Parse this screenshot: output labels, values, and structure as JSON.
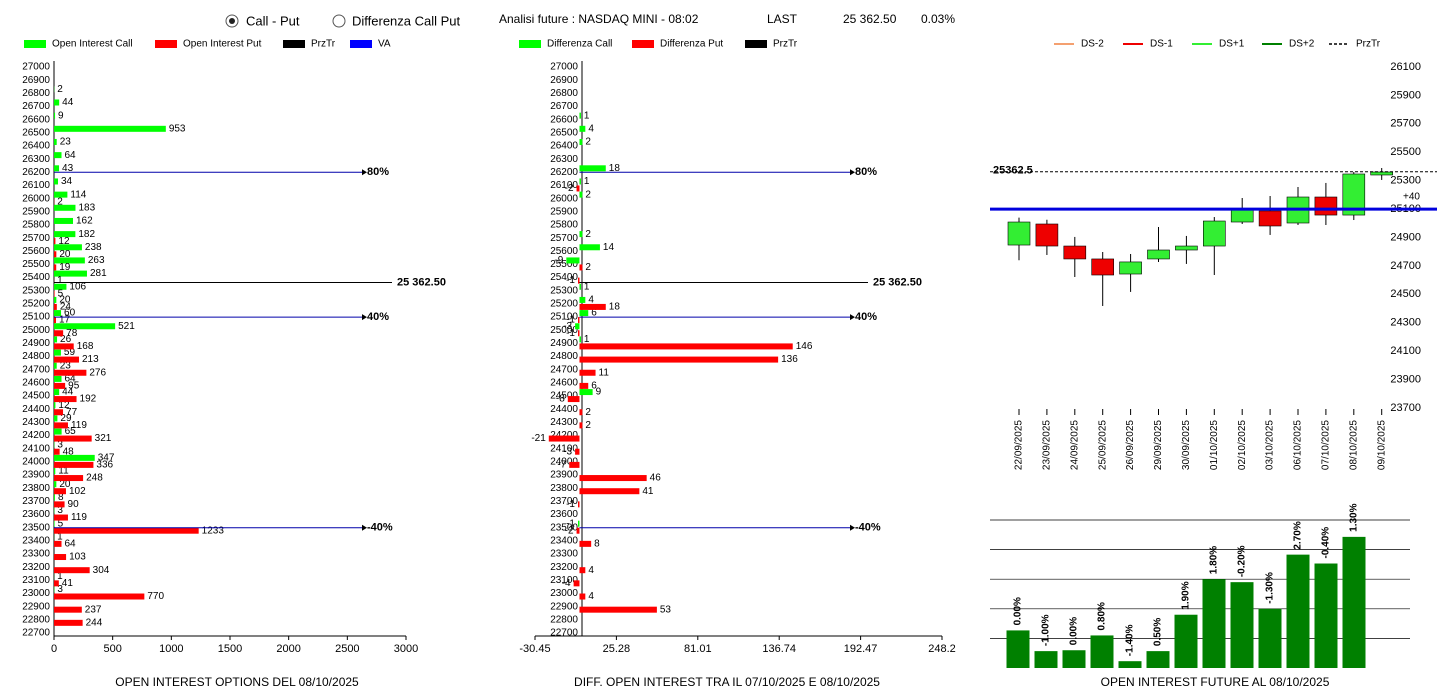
{
  "header": {
    "options": [
      "Call - Put",
      "Differenza Call Put"
    ],
    "title": "Analisi future : NASDAQ MINI - 08:02",
    "last_label": "LAST",
    "last_value": "25 362.50",
    "change": "0.03%"
  },
  "chart_data": [
    {
      "type": "bar",
      "orientation": "horizontal",
      "title": "OPEN INTEREST OPTIONS DEL 08/10/2025",
      "categories": [
        27000,
        26900,
        26800,
        26700,
        26600,
        26500,
        26400,
        26300,
        26200,
        26100,
        26000,
        25900,
        25800,
        25700,
        25600,
        25500,
        25400,
        25300,
        25200,
        25100,
        25000,
        24900,
        24800,
        24700,
        24600,
        24500,
        24400,
        24300,
        24200,
        24100,
        24000,
        23900,
        23800,
        23700,
        23600,
        23500,
        23400,
        23300,
        23200,
        23100,
        23000,
        22900,
        22800,
        22700
      ],
      "series": [
        {
          "name": "Open Interest Call",
          "color": "#00ff00",
          "values": [
            null,
            null,
            2,
            44,
            9,
            953,
            23,
            64,
            43,
            34,
            114,
            183,
            162,
            182,
            238,
            263,
            281,
            106,
            20,
            60,
            521,
            26,
            59,
            23,
            64,
            44,
            12,
            29,
            65,
            3,
            347,
            11,
            20,
            8,
            3,
            5,
            1,
            null,
            null,
            1,
            3,
            null,
            null,
            null
          ]
        },
        {
          "name": "Open Interest Put",
          "color": "#ff0000",
          "values": [
            null,
            null,
            null,
            null,
            null,
            null,
            null,
            null,
            null,
            null,
            2,
            null,
            null,
            12,
            20,
            19,
            1,
            5,
            24,
            17,
            78,
            168,
            213,
            276,
            95,
            192,
            77,
            119,
            321,
            48,
            336,
            248,
            102,
            90,
            119,
            1233,
            64,
            103,
            304,
            41,
            770,
            237,
            244,
            null
          ]
        }
      ],
      "legend_extra": [
        {
          "name": "PrzTr",
          "color": "#000000"
        },
        {
          "name": "VA",
          "color": "#0000ff"
        }
      ],
      "reference_lines": [
        {
          "value": 26200,
          "label": "80%",
          "color": "#0000aa"
        },
        {
          "value": 25362.5,
          "label": "25 362.50",
          "color": "#000000"
        },
        {
          "value": 25100,
          "label": "40%",
          "color": "#0000aa"
        },
        {
          "value": 23500,
          "label": "-40%",
          "color": "#0000aa"
        }
      ],
      "xlim": [
        0,
        3000
      ],
      "xticks": [
        0,
        500,
        1000,
        1500,
        2000,
        2500,
        3000
      ]
    },
    {
      "type": "bar",
      "orientation": "horizontal",
      "title": "DIFF. OPEN INTEREST TRA IL 07/10/2025 E 08/10/2025",
      "categories": [
        27000,
        26900,
        26800,
        26700,
        26600,
        26500,
        26400,
        26300,
        26200,
        26100,
        26000,
        25900,
        25800,
        25700,
        25600,
        25500,
        25400,
        25300,
        25200,
        25100,
        25000,
        24900,
        24800,
        24700,
        24600,
        24500,
        24400,
        24300,
        24200,
        24100,
        24000,
        23900,
        23800,
        23700,
        23600,
        23500,
        23400,
        23300,
        23200,
        23100,
        23000,
        22900,
        22800,
        22700
      ],
      "series": [
        {
          "name": "Differenza Call",
          "color": "#00ff00",
          "values": [
            null,
            null,
            null,
            null,
            1,
            4,
            2,
            null,
            18,
            1,
            2,
            null,
            null,
            2,
            14,
            -9,
            null,
            1,
            4,
            6,
            -3,
            1,
            null,
            null,
            null,
            9,
            null,
            null,
            null,
            null,
            null,
            null,
            null,
            null,
            null,
            -1,
            null,
            null,
            null,
            null,
            null,
            null,
            null,
            null
          ]
        },
        {
          "name": "Differenza Put",
          "color": "#ff0000",
          "values": [
            null,
            null,
            null,
            null,
            null,
            null,
            null,
            null,
            null,
            -2,
            null,
            null,
            null,
            null,
            null,
            2,
            -1,
            null,
            18,
            -1,
            -1,
            146,
            136,
            11,
            6,
            -8,
            2,
            2,
            -21,
            -3,
            -7,
            46,
            41,
            -1,
            null,
            -2,
            8,
            null,
            4,
            -4,
            4,
            53,
            null,
            null
          ]
        }
      ],
      "legend_extra": [
        {
          "name": "PrzTr",
          "color": "#000000"
        }
      ],
      "reference_lines": [
        {
          "value": 26200,
          "label": "80%",
          "color": "#0000aa"
        },
        {
          "value": 25362.5,
          "label": "25 362.50",
          "color": "#000000"
        },
        {
          "value": 25100,
          "label": "40%",
          "color": "#0000aa"
        },
        {
          "value": 23500,
          "label": "-40%",
          "color": "#0000aa"
        }
      ],
      "xlim": [
        -30.45,
        248.2
      ],
      "xticks": [
        -30.45,
        25.28,
        81.01,
        136.74,
        192.47,
        248.2
      ]
    },
    {
      "type": "candlestick",
      "categories": [
        "22/09/2025",
        "23/09/2025",
        "24/09/2025",
        "25/09/2025",
        "26/09/2025",
        "29/09/2025",
        "30/09/2025",
        "01/10/2025",
        "02/10/2025",
        "03/10/2025",
        "06/10/2025",
        "07/10/2025",
        "08/10/2025",
        "09/10/2025"
      ],
      "open": [
        24847,
        24995,
        24840,
        24749,
        24643,
        24749,
        24812,
        24840,
        25009,
        25087,
        25002,
        25185,
        25058,
        25340
      ],
      "high": [
        25040,
        25025,
        24904,
        24798,
        24784,
        24974,
        24911,
        25044,
        25178,
        25192,
        25255,
        25284,
        25361,
        25389
      ],
      "low": [
        24740,
        24777,
        24622,
        24418,
        24517,
        24728,
        24714,
        24636,
        24995,
        24918,
        24988,
        24988,
        25023,
        25305
      ],
      "close": [
        25009,
        24840,
        24749,
        24636,
        24728,
        24812,
        24840,
        25016,
        25094,
        24981,
        25185,
        25058,
        25347,
        25361
      ],
      "up_color": "#33ee33",
      "down_color": "#ee0000",
      "legend": [
        {
          "name": "DS-2",
          "color": "#f4a070",
          "dash": false
        },
        {
          "name": "DS-1",
          "color": "#ee0000",
          "dash": false
        },
        {
          "name": "DS+1",
          "color": "#33ee33",
          "dash": false
        },
        {
          "name": "DS+2",
          "color": "#008000",
          "dash": false
        },
        {
          "name": "PrzTr",
          "color": "#000000",
          "dash": true
        }
      ],
      "przTr": 25362.5,
      "reference_line": {
        "value": 25100,
        "label": "+40",
        "color": "#0000dd"
      },
      "ylim": [
        23700,
        26100
      ],
      "yticks": [
        23700,
        23900,
        24100,
        24300,
        24500,
        24700,
        24900,
        25100,
        25300,
        25500,
        25700,
        25900,
        26100
      ]
    },
    {
      "type": "bar",
      "title": "OPEN INTEREST FUTURE AL 08/10/2025",
      "color": "#008000",
      "values": [
        1.27,
        0.57,
        0.6,
        1.1,
        0.23,
        0.57,
        1.8,
        3.0,
        2.9,
        2.0,
        3.83,
        3.53,
        4.43
      ],
      "change_labels": [
        "0.00%",
        "-1.00%",
        "0.00%",
        "0.80%",
        "-1.40%",
        "0.50%",
        "1.90%",
        "1.80%",
        "-0.20%",
        "-1.30%",
        "2.70%",
        "-0.40%",
        "1.30%"
      ],
      "ylim": [
        0,
        5
      ]
    }
  ]
}
